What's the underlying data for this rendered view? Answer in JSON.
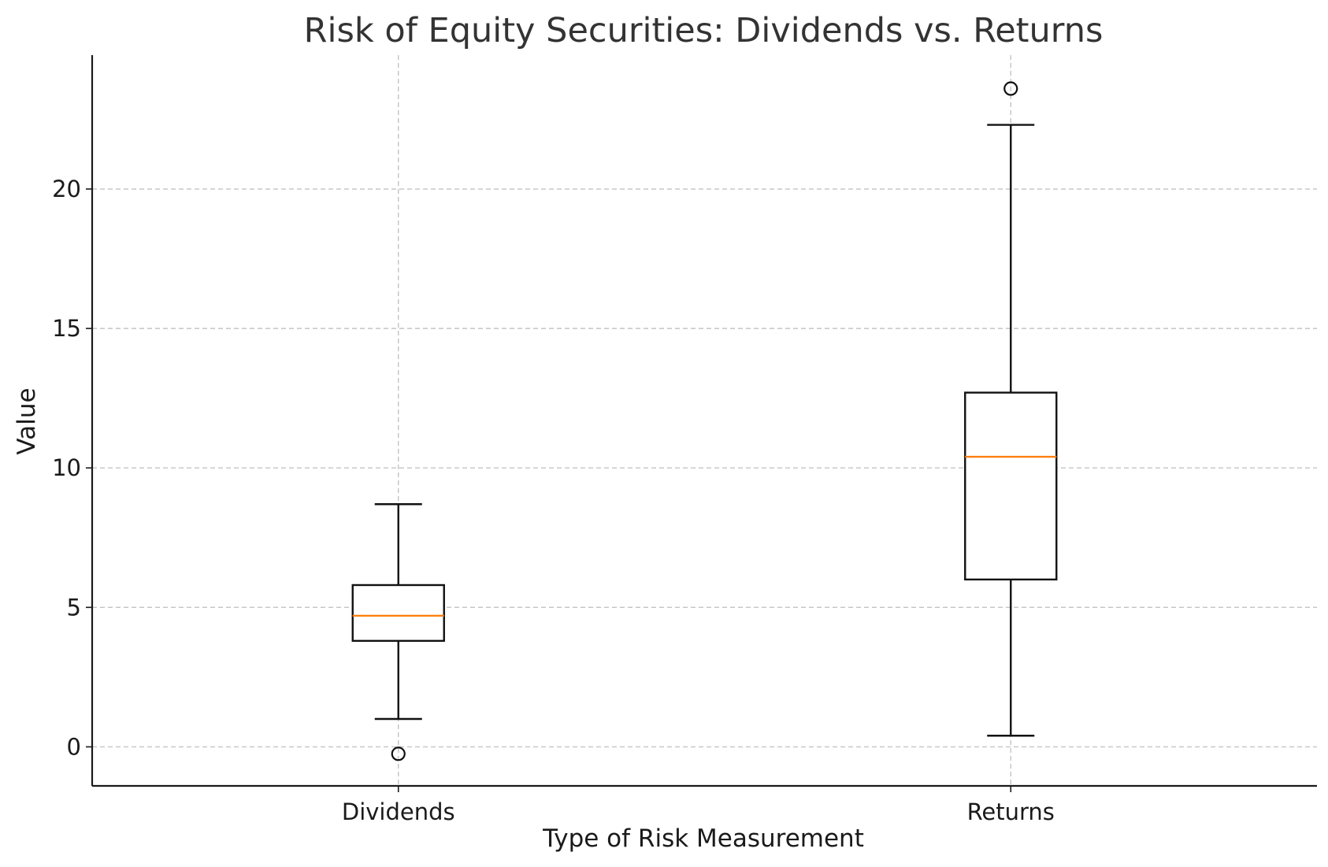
{
  "chart_data": {
    "type": "box",
    "title": "Risk of Equity Securities: Dividends vs. Returns",
    "xlabel": "Type of Risk Measurement",
    "ylabel": "Value",
    "categories": [
      "Dividends",
      "Returns"
    ],
    "boxes": [
      {
        "name": "Dividends",
        "whisker_low": 1.0,
        "q1": 3.8,
        "median": 4.7,
        "q3": 5.8,
        "whisker_high": 8.7,
        "outliers": [
          -0.25
        ]
      },
      {
        "name": "Returns",
        "whisker_low": 0.4,
        "q1": 6.0,
        "median": 10.4,
        "q3": 12.7,
        "whisker_high": 22.3,
        "outliers": [
          23.6
        ]
      }
    ],
    "ylim": [
      -1.4,
      24.8
    ],
    "yticks": [
      0,
      5,
      10,
      15,
      20
    ],
    "grid": true,
    "colors": {
      "median": "#ff7f0e",
      "box": "#111111",
      "grid": "#c4c4c4"
    }
  }
}
